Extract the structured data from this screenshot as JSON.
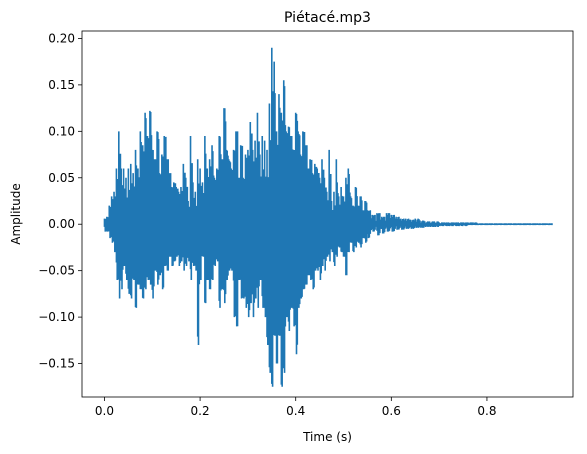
{
  "chart_data": {
    "type": "line",
    "title": "Piétacé.mp3",
    "xlabel": "Time (s)",
    "ylabel": "Amplitude",
    "xlim": [
      -0.047,
      0.98
    ],
    "ylim": [
      -0.186,
      0.208
    ],
    "xticks": [
      0.0,
      0.2,
      0.4,
      0.6,
      0.8
    ],
    "xtick_labels": [
      "0.0",
      "0.2",
      "0.4",
      "0.6",
      "0.8"
    ],
    "yticks": [
      -0.15,
      -0.1,
      -0.05,
      0.0,
      0.05,
      0.1,
      0.15,
      0.2
    ],
    "ytick_labels": [
      "−0.15",
      "−0.10",
      "−0.05",
      "0.00",
      "0.05",
      "0.10",
      "0.15",
      "0.20"
    ],
    "grid": false,
    "color": "#1f77b4",
    "series": [
      {
        "x": [
          0.0,
          0.005,
          0.01,
          0.015,
          0.02,
          0.025,
          0.03,
          0.035,
          0.04,
          0.045,
          0.05,
          0.055,
          0.06,
          0.065,
          0.07,
          0.075,
          0.08,
          0.085,
          0.09,
          0.095,
          0.1,
          0.105,
          0.11,
          0.115,
          0.12,
          0.125,
          0.13,
          0.135,
          0.14,
          0.145,
          0.15,
          0.155,
          0.16,
          0.165,
          0.17,
          0.175,
          0.18,
          0.185,
          0.19,
          0.195,
          0.2,
          0.205,
          0.21,
          0.215,
          0.22,
          0.225,
          0.23,
          0.235,
          0.24,
          0.245,
          0.25,
          0.255,
          0.26,
          0.265,
          0.27,
          0.275,
          0.28,
          0.285,
          0.29,
          0.295,
          0.3,
          0.305,
          0.31,
          0.315,
          0.32,
          0.325,
          0.33,
          0.335,
          0.34,
          0.345,
          0.35,
          0.355,
          0.36,
          0.365,
          0.37,
          0.375,
          0.38,
          0.385,
          0.39,
          0.395,
          0.4,
          0.405,
          0.41,
          0.415,
          0.42,
          0.425,
          0.43,
          0.435,
          0.44,
          0.445,
          0.45,
          0.455,
          0.46,
          0.465,
          0.47,
          0.475,
          0.48,
          0.485,
          0.49,
          0.495,
          0.5,
          0.505,
          0.51,
          0.515,
          0.52,
          0.525,
          0.53,
          0.535,
          0.54,
          0.545,
          0.55,
          0.56,
          0.57,
          0.58,
          0.59,
          0.6,
          0.61,
          0.62,
          0.63,
          0.64,
          0.65,
          0.66,
          0.67,
          0.68,
          0.69,
          0.7,
          0.72,
          0.74,
          0.76,
          0.78,
          0.8,
          0.82,
          0.84,
          0.86,
          0.88,
          0.9,
          0.92,
          0.935
        ],
        "max": [
          0.006,
          0.008,
          0.02,
          0.03,
          0.035,
          0.06,
          0.1,
          0.06,
          0.06,
          0.05,
          0.06,
          0.065,
          0.055,
          0.08,
          0.06,
          0.1,
          0.085,
          0.12,
          0.095,
          0.122,
          0.08,
          0.07,
          0.1,
          0.055,
          0.075,
          0.095,
          0.07,
          0.055,
          0.04,
          0.045,
          0.04,
          0.035,
          0.04,
          0.065,
          0.05,
          0.025,
          0.095,
          0.045,
          0.035,
          0.07,
          0.06,
          0.045,
          0.095,
          0.06,
          0.07,
          0.085,
          0.05,
          0.06,
          0.095,
          0.07,
          0.125,
          0.08,
          0.07,
          0.06,
          0.08,
          0.1,
          0.05,
          0.085,
          0.05,
          0.075,
          0.08,
          0.11,
          0.08,
          0.09,
          0.12,
          0.075,
          0.095,
          0.09,
          0.08,
          0.13,
          0.19,
          0.175,
          0.1,
          0.14,
          0.12,
          0.155,
          0.1,
          0.105,
          0.095,
          0.08,
          0.12,
          0.1,
          0.075,
          0.1,
          0.085,
          0.06,
          0.07,
          0.055,
          0.065,
          0.06,
          0.05,
          0.07,
          0.05,
          0.035,
          0.08,
          0.025,
          0.035,
          0.07,
          0.03,
          0.04,
          0.03,
          0.05,
          0.06,
          0.03,
          0.02,
          0.04,
          0.02,
          0.03,
          0.015,
          0.025,
          0.015,
          0.01,
          0.012,
          0.008,
          0.012,
          0.01,
          0.008,
          0.006,
          0.006,
          0.005,
          0.006,
          0.004,
          0.003,
          0.003,
          0.003,
          0.002,
          0.002,
          0.002,
          0.002,
          0.001,
          0.001,
          0.001,
          0.001,
          0.001,
          0.001,
          0.001,
          0.001,
          0.001
        ],
        "min": [
          -0.008,
          -0.008,
          -0.015,
          -0.02,
          -0.03,
          -0.06,
          -0.08,
          -0.07,
          -0.045,
          -0.06,
          -0.075,
          -0.08,
          -0.06,
          -0.09,
          -0.065,
          -0.07,
          -0.08,
          -0.07,
          -0.06,
          -0.065,
          -0.08,
          -0.05,
          -0.065,
          -0.055,
          -0.07,
          -0.045,
          -0.05,
          -0.035,
          -0.045,
          -0.04,
          -0.035,
          -0.045,
          -0.04,
          -0.05,
          -0.045,
          -0.04,
          -0.06,
          -0.045,
          -0.05,
          -0.13,
          -0.06,
          -0.035,
          -0.085,
          -0.06,
          -0.07,
          -0.06,
          -0.045,
          -0.04,
          -0.09,
          -0.07,
          -0.085,
          -0.06,
          -0.05,
          -0.05,
          -0.1,
          -0.11,
          -0.06,
          -0.08,
          -0.08,
          -0.09,
          -0.1,
          -0.085,
          -0.1,
          -0.08,
          -0.09,
          -0.06,
          -0.09,
          -0.1,
          -0.13,
          -0.16,
          -0.175,
          -0.12,
          -0.15,
          -0.12,
          -0.175,
          -0.16,
          -0.1,
          -0.115,
          -0.09,
          -0.11,
          -0.14,
          -0.09,
          -0.08,
          -0.07,
          -0.065,
          -0.055,
          -0.06,
          -0.07,
          -0.05,
          -0.05,
          -0.06,
          -0.045,
          -0.05,
          -0.035,
          -0.04,
          -0.03,
          -0.045,
          -0.035,
          -0.025,
          -0.03,
          -0.035,
          -0.055,
          -0.03,
          -0.02,
          -0.03,
          -0.025,
          -0.02,
          -0.025,
          -0.015,
          -0.02,
          -0.015,
          -0.008,
          -0.012,
          -0.01,
          -0.008,
          -0.008,
          -0.006,
          -0.006,
          -0.005,
          -0.005,
          -0.004,
          -0.004,
          -0.003,
          -0.003,
          -0.003,
          -0.002,
          -0.002,
          -0.002,
          -0.001,
          -0.001,
          -0.001,
          -0.001,
          -0.001,
          -0.001,
          -0.001,
          -0.001,
          -0.001,
          -0.001
        ]
      }
    ]
  }
}
